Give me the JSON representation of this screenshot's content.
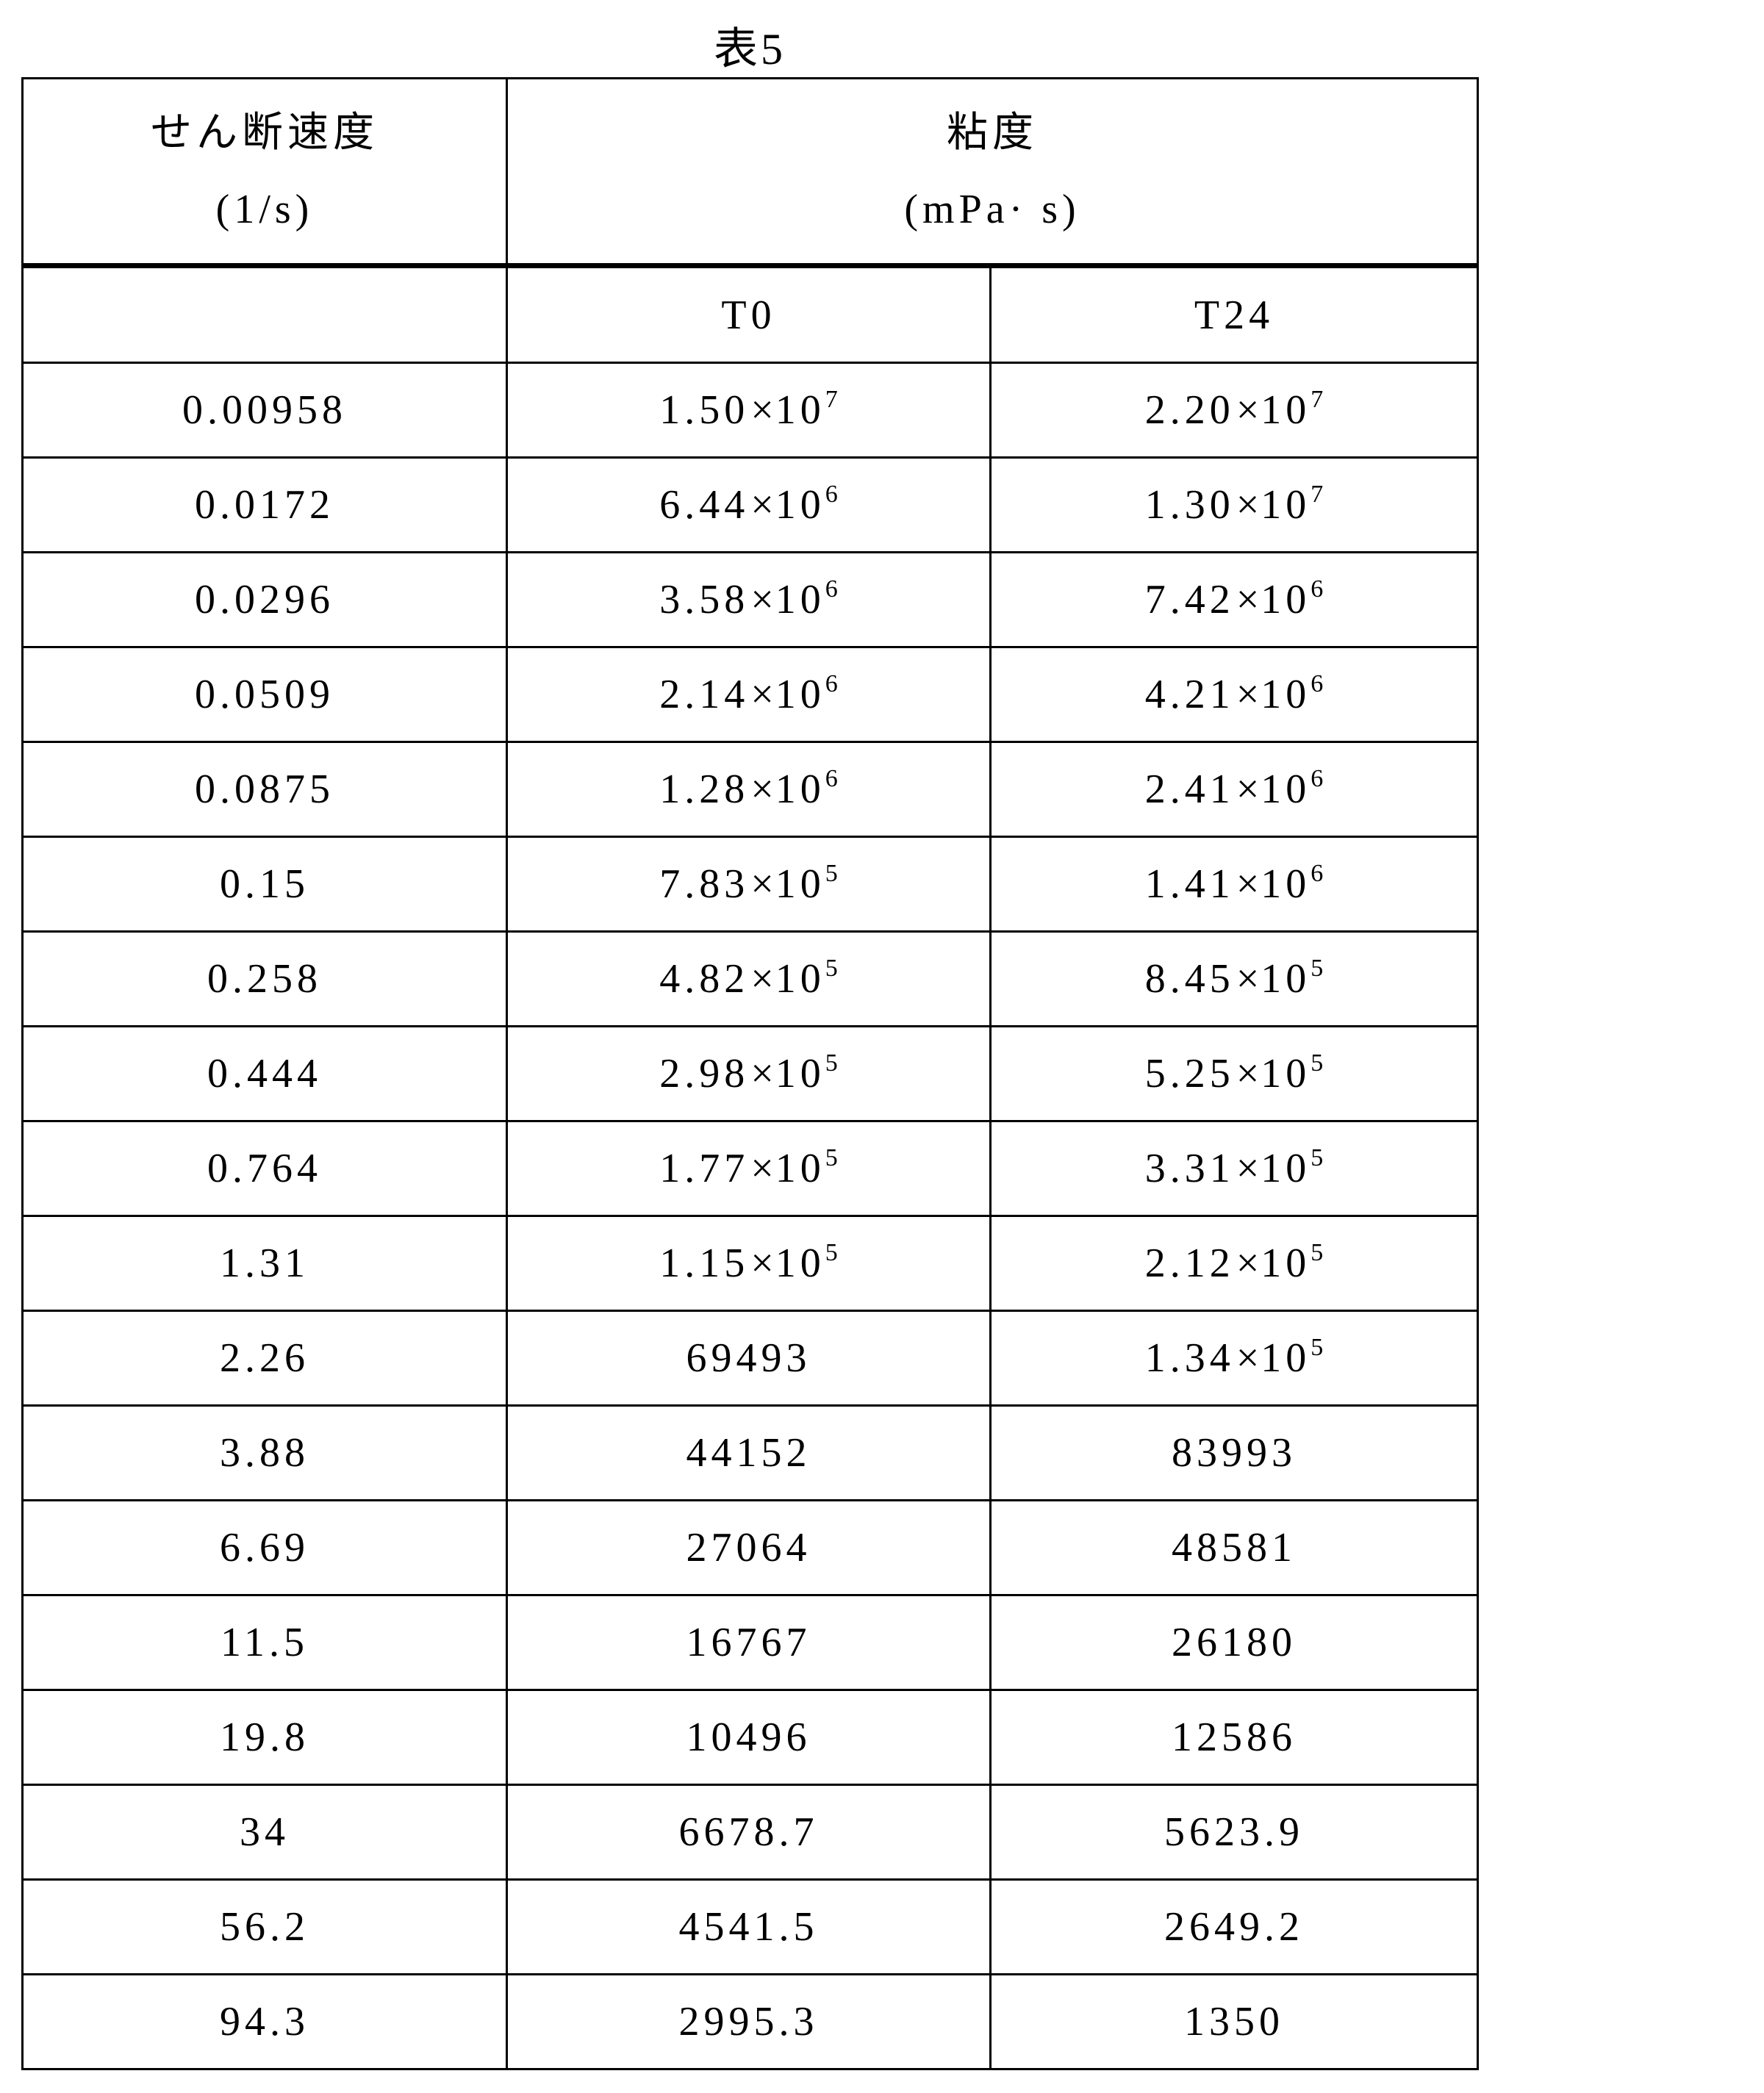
{
  "table_title": "表5",
  "header": {
    "shear_rate_label": "せん断速度",
    "shear_rate_unit": "(1/s)",
    "viscosity_label": "粘度",
    "viscosity_unit": "(mPa· s)",
    "sub_columns": [
      "",
      "T0",
      "T24"
    ]
  },
  "rows": [
    {
      "rate": "0.00958",
      "t0": {
        "m": "1.50",
        "e": "7"
      },
      "t24": {
        "m": "2.20",
        "e": "7"
      }
    },
    {
      "rate": "0.0172",
      "t0": {
        "m": "6.44",
        "e": "6"
      },
      "t24": {
        "m": "1.30",
        "e": "7"
      }
    },
    {
      "rate": "0.0296",
      "t0": {
        "m": "3.58",
        "e": "6"
      },
      "t24": {
        "m": "7.42",
        "e": "6"
      }
    },
    {
      "rate": "0.0509",
      "t0": {
        "m": "2.14",
        "e": "6"
      },
      "t24": {
        "m": "4.21",
        "e": "6"
      }
    },
    {
      "rate": "0.0875",
      "t0": {
        "m": "1.28",
        "e": "6"
      },
      "t24": {
        "m": "2.41",
        "e": "6"
      }
    },
    {
      "rate": "0.15",
      "t0": {
        "m": "7.83",
        "e": "5"
      },
      "t24": {
        "m": "1.41",
        "e": "6"
      }
    },
    {
      "rate": "0.258",
      "t0": {
        "m": "4.82",
        "e": "5"
      },
      "t24": {
        "m": "8.45",
        "e": "5"
      }
    },
    {
      "rate": "0.444",
      "t0": {
        "m": "2.98",
        "e": "5"
      },
      "t24": {
        "m": "5.25",
        "e": "5"
      }
    },
    {
      "rate": "0.764",
      "t0": {
        "m": "1.77",
        "e": "5"
      },
      "t24": {
        "m": "3.31",
        "e": "5"
      }
    },
    {
      "rate": "1.31",
      "t0": {
        "m": "1.15",
        "e": "5"
      },
      "t24": {
        "m": "2.12",
        "e": "5"
      }
    },
    {
      "rate": "2.26",
      "t0": "69493",
      "t24": {
        "m": "1.34",
        "e": "5"
      }
    },
    {
      "rate": "3.88",
      "t0": "44152",
      "t24": "83993"
    },
    {
      "rate": "6.69",
      "t0": "27064",
      "t24": "48581"
    },
    {
      "rate": "11.5",
      "t0": "16767",
      "t24": "26180"
    },
    {
      "rate": "19.8",
      "t0": "10496",
      "t24": "12586"
    },
    {
      "rate": "34",
      "t0": "6678.7",
      "t24": "5623.9"
    },
    {
      "rate": "56.2",
      "t0": "4541.5",
      "t24": "2649.2"
    },
    {
      "rate": "94.3",
      "t0": "2995.3",
      "t24": "1350"
    }
  ]
}
